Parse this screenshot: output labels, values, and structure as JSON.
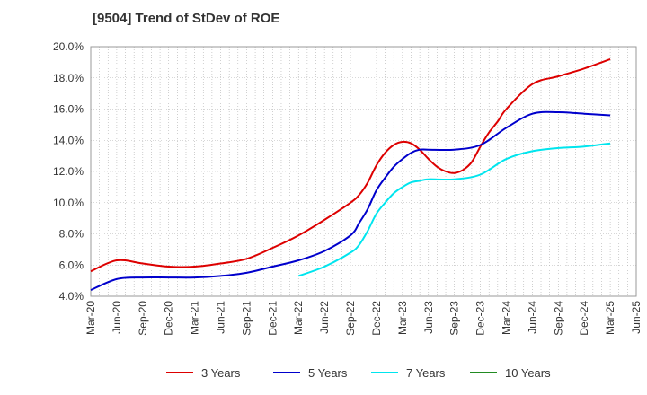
{
  "chart_data": {
    "type": "line",
    "title": "[9504]  Trend of StDev of ROE",
    "xlabel": "",
    "ylabel": "",
    "ylim": [
      4.0,
      20.0
    ],
    "y_ticks": [
      "4.0%",
      "6.0%",
      "8.0%",
      "10.0%",
      "12.0%",
      "14.0%",
      "16.0%",
      "18.0%",
      "20.0%"
    ],
    "x_ticks": [
      "Mar-20",
      "Jun-20",
      "Sep-20",
      "Dec-20",
      "Mar-21",
      "Jun-21",
      "Sep-21",
      "Dec-21",
      "Mar-22",
      "Jun-22",
      "Sep-22",
      "Dec-22",
      "Mar-23",
      "Jun-23",
      "Sep-23",
      "Dec-23",
      "Mar-24",
      "Jun-24",
      "Sep-24",
      "Dec-24",
      "Mar-25",
      "Jun-25"
    ],
    "grid": true,
    "legend_position": "bottom",
    "series": [
      {
        "name": "3 Years",
        "color": "#dd0000",
        "x": [
          "Mar-20",
          "Jun-20",
          "Sep-20",
          "Dec-20",
          "Mar-21",
          "Jun-21",
          "Sep-21",
          "Dec-21",
          "Mar-22",
          "Jun-22",
          "Sep-22",
          "Oct-22",
          "Nov-22",
          "Dec-22",
          "Jan-23",
          "Feb-23",
          "Mar-23",
          "Apr-23",
          "May-23",
          "Jun-23",
          "Jul-23",
          "Aug-23",
          "Sep-23",
          "Oct-23",
          "Nov-23",
          "Dec-23",
          "Jan-24",
          "Feb-24",
          "Mar-24",
          "Jun-24",
          "Sep-24",
          "Dec-24",
          "Mar-25"
        ],
        "values": [
          5.6,
          6.3,
          6.1,
          5.9,
          5.9,
          6.1,
          6.4,
          7.1,
          7.9,
          8.9,
          10.0,
          10.5,
          11.3,
          12.4,
          13.2,
          13.7,
          13.9,
          13.8,
          13.4,
          12.8,
          12.3,
          12.0,
          11.9,
          12.1,
          12.6,
          13.6,
          14.5,
          15.2,
          16.0,
          17.6,
          18.1,
          18.6,
          19.2
        ]
      },
      {
        "name": "5 Years",
        "color": "#0000cc",
        "x": [
          "Mar-20",
          "Jun-20",
          "Sep-20",
          "Dec-20",
          "Mar-21",
          "Jun-21",
          "Sep-21",
          "Dec-21",
          "Mar-22",
          "Jun-22",
          "Sep-22",
          "Oct-22",
          "Nov-22",
          "Dec-22",
          "Jan-23",
          "Feb-23",
          "Mar-23",
          "Apr-23",
          "May-23",
          "Jun-23",
          "Sep-23",
          "Dec-23",
          "Mar-24",
          "Jun-24",
          "Sep-24",
          "Dec-24",
          "Mar-25"
        ],
        "values": [
          4.4,
          5.1,
          5.2,
          5.2,
          5.2,
          5.3,
          5.5,
          5.9,
          6.3,
          6.9,
          7.9,
          8.7,
          9.6,
          10.8,
          11.6,
          12.3,
          12.8,
          13.2,
          13.4,
          13.4,
          13.4,
          13.7,
          14.8,
          15.7,
          15.8,
          15.7,
          15.6
        ]
      },
      {
        "name": "7 Years",
        "color": "#00e5ee",
        "x": [
          "Mar-22",
          "Jun-22",
          "Sep-22",
          "Oct-22",
          "Nov-22",
          "Dec-22",
          "Jan-23",
          "Feb-23",
          "Mar-23",
          "Apr-23",
          "May-23",
          "Jun-23",
          "Sep-23",
          "Dec-23",
          "Mar-24",
          "Jun-24",
          "Sep-24",
          "Dec-24",
          "Mar-25"
        ],
        "values": [
          5.3,
          5.9,
          6.8,
          7.3,
          8.2,
          9.3,
          10.0,
          10.6,
          11.0,
          11.3,
          11.4,
          11.5,
          11.5,
          11.8,
          12.8,
          13.3,
          13.5,
          13.6,
          13.8
        ]
      },
      {
        "name": "10 Years",
        "color": "#228b22",
        "x": [],
        "values": []
      }
    ]
  }
}
